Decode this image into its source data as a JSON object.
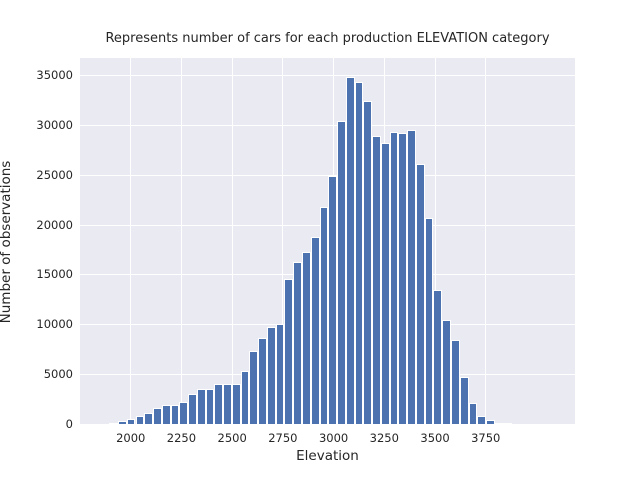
{
  "figure": {
    "title": "Represents number of cars for each production ELEVATION category",
    "xlabel": "Elevation",
    "ylabel": "Number of observations"
  },
  "chart_data": {
    "type": "bar",
    "subtype": "histogram",
    "title": "Represents number of cars for each production ELEVATION category",
    "xlabel": "Elevation",
    "ylabel": "Number of observations",
    "x_ticks": [
      2000,
      2250,
      2500,
      2750,
      3000,
      3250,
      3500,
      3750
    ],
    "y_ticks": [
      0,
      5000,
      10000,
      15000,
      20000,
      25000,
      30000,
      35000
    ],
    "xlim": [
      1750,
      4190
    ],
    "ylim": [
      0,
      36800
    ],
    "grid": true,
    "legend": false,
    "bin_start": 1894,
    "bin_width": 43.2,
    "values": [
      150,
      350,
      500,
      800,
      1150,
      1600,
      1900,
      1950,
      2250,
      3000,
      3550,
      3550,
      4000,
      4050,
      4000,
      5280,
      7350,
      8600,
      9750,
      10070,
      14560,
      16250,
      17250,
      18840,
      21850,
      24970,
      30500,
      34900,
      34340,
      32490,
      28950,
      28210,
      29380,
      29280,
      29550,
      26100,
      20700,
      13490,
      10470,
      8400,
      4720,
      2110,
      830,
      360,
      130,
      80
    ],
    "colors": {
      "bar": "#4c72b0",
      "bar_edge": "#ffffff",
      "plot_bg": "#eaeaf2",
      "grid": "#ffffff",
      "text": "#262626",
      "figure_bg": "#ffffff"
    }
  }
}
